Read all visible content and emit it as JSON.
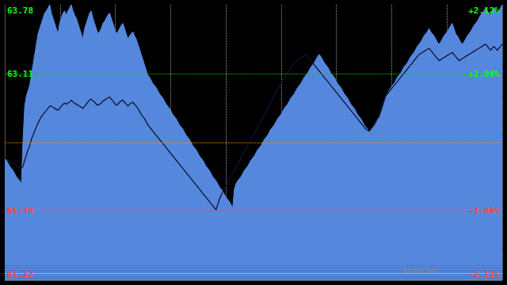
{
  "chart_data": {
    "type": "line",
    "ylim": [
      61.12,
      63.78
    ],
    "tick_labels": false,
    "grid": true,
    "series": [
      {
        "type": "area",
        "color": "#5588dd",
        "values": [
          62.3,
          62.28,
          62.25,
          62.22,
          62.2,
          62.18,
          62.15,
          62.12,
          62.1,
          62.08,
          62.05,
          62.48,
          62.8,
          62.9,
          62.95,
          63.0,
          63.1,
          63.2,
          63.3,
          63.4,
          63.5,
          63.55,
          63.6,
          63.65,
          63.7,
          63.72,
          63.75,
          63.78,
          63.7,
          63.65,
          63.6,
          63.55,
          63.5,
          63.6,
          63.65,
          63.7,
          63.72,
          63.68,
          63.72,
          63.75,
          63.78,
          63.72,
          63.68,
          63.65,
          63.6,
          63.55,
          63.5,
          63.45,
          63.55,
          63.6,
          63.65,
          63.7,
          63.72,
          63.65,
          63.6,
          63.55,
          63.5,
          63.52,
          63.55,
          63.6,
          63.62,
          63.65,
          63.68,
          63.7,
          63.65,
          63.6,
          63.55,
          63.5,
          63.52,
          63.55,
          63.58,
          63.6,
          63.55,
          63.5,
          63.45,
          63.48,
          63.5,
          63.52,
          63.48,
          63.45,
          63.4,
          63.35,
          63.3,
          63.25,
          63.2,
          63.15,
          63.1,
          63.08,
          63.05,
          63.02,
          63.0,
          62.98,
          62.95,
          62.92,
          62.9,
          62.88,
          62.85,
          62.82,
          62.8,
          62.78,
          62.75,
          62.72,
          62.7,
          62.68,
          62.65,
          62.62,
          62.6,
          62.58,
          62.55,
          62.52,
          62.5,
          62.48,
          62.45,
          62.42,
          62.4,
          62.38,
          62.35,
          62.32,
          62.3,
          62.28,
          62.25,
          62.22,
          62.2,
          62.18,
          62.15,
          62.12,
          62.1,
          62.08,
          62.05,
          62.02,
          62.0,
          61.98,
          61.95,
          61.92,
          61.9,
          61.88,
          61.85,
          61.82,
          62.0,
          62.05,
          62.08,
          62.1,
          62.12,
          62.15,
          62.18,
          62.2,
          62.22,
          62.25,
          62.28,
          62.3,
          62.32,
          62.35,
          62.38,
          62.4,
          62.42,
          62.45,
          62.48,
          62.5,
          62.52,
          62.55,
          62.58,
          62.6,
          62.62,
          62.65,
          62.68,
          62.7,
          62.72,
          62.75,
          62.78,
          62.8,
          62.82,
          62.85,
          62.88,
          62.9,
          62.92,
          62.95,
          62.98,
          63.0,
          63.02,
          63.05,
          63.08,
          63.1,
          63.12,
          63.15,
          63.18,
          63.2,
          63.22,
          63.25,
          63.28,
          63.3,
          63.28,
          63.25,
          63.22,
          63.2,
          63.18,
          63.15,
          63.12,
          63.1,
          63.08,
          63.05,
          63.02,
          63.0,
          62.98,
          62.95,
          62.92,
          62.9,
          62.88,
          62.85,
          62.82,
          62.8,
          62.78,
          62.75,
          62.72,
          62.7,
          62.68,
          62.65,
          62.62,
          62.6,
          62.58,
          62.55,
          62.58,
          62.6,
          62.62,
          62.65,
          62.68,
          62.7,
          62.75,
          62.8,
          62.85,
          62.9,
          62.92,
          62.95,
          62.98,
          63.0,
          63.02,
          63.05,
          63.08,
          63.1,
          63.12,
          63.15,
          63.18,
          63.2,
          63.22,
          63.25,
          63.28,
          63.3,
          63.32,
          63.35,
          63.38,
          63.4,
          63.42,
          63.45,
          63.48,
          63.5,
          63.52,
          63.55,
          63.52,
          63.5,
          63.48,
          63.45,
          63.42,
          63.4,
          63.42,
          63.45,
          63.48,
          63.5,
          63.52,
          63.55,
          63.58,
          63.6,
          63.55,
          63.5,
          63.48,
          63.45,
          63.42,
          63.4,
          63.42,
          63.45,
          63.48,
          63.5,
          63.52,
          63.55,
          63.58,
          63.6,
          63.62,
          63.65,
          63.68,
          63.7,
          63.72,
          63.75,
          63.72,
          63.7,
          63.68,
          63.72,
          63.75,
          63.72,
          63.7,
          63.72,
          63.75,
          63.78
        ]
      },
      {
        "type": "line",
        "color": "#111133",
        "values": [
          62.3,
          62.29,
          62.28,
          62.27,
          62.26,
          62.25,
          62.24,
          62.23,
          62.22,
          62.21,
          62.2,
          62.22,
          62.28,
          62.33,
          62.38,
          62.42,
          62.48,
          62.52,
          62.56,
          62.6,
          62.64,
          62.67,
          62.7,
          62.72,
          62.74,
          62.76,
          62.78,
          62.8,
          62.8,
          62.79,
          62.78,
          62.77,
          62.76,
          62.78,
          62.8,
          62.82,
          62.83,
          62.82,
          62.83,
          62.84,
          62.86,
          62.84,
          62.83,
          62.82,
          62.81,
          62.8,
          62.79,
          62.78,
          62.8,
          62.82,
          62.84,
          62.86,
          62.87,
          62.85,
          62.84,
          62.82,
          62.81,
          62.82,
          62.83,
          62.85,
          62.86,
          62.87,
          62.88,
          62.89,
          62.87,
          62.85,
          62.83,
          62.81,
          62.82,
          62.84,
          62.85,
          62.86,
          62.84,
          62.82,
          62.8,
          62.82,
          62.83,
          62.84,
          62.82,
          62.8,
          62.78,
          62.75,
          62.72,
          62.7,
          62.68,
          62.65,
          62.62,
          62.6,
          62.58,
          62.56,
          62.54,
          62.52,
          62.5,
          62.48,
          62.46,
          62.44,
          62.42,
          62.4,
          62.38,
          62.36,
          62.34,
          62.32,
          62.3,
          62.28,
          62.26,
          62.24,
          62.22,
          62.2,
          62.18,
          62.16,
          62.14,
          62.12,
          62.1,
          62.08,
          62.06,
          62.04,
          62.02,
          62.0,
          61.98,
          61.96,
          61.94,
          61.92,
          61.9,
          61.88,
          61.86,
          61.84,
          61.82,
          61.8,
          61.85,
          61.9,
          61.94,
          61.97,
          62.0,
          62.03,
          62.06,
          62.09,
          62.12,
          62.15,
          62.18,
          62.21,
          62.24,
          62.27,
          62.3,
          62.33,
          62.36,
          62.39,
          62.42,
          62.45,
          62.48,
          62.51,
          62.54,
          62.57,
          62.6,
          62.63,
          62.66,
          62.69,
          62.72,
          62.75,
          62.78,
          62.81,
          62.84,
          62.87,
          62.9,
          62.93,
          62.96,
          62.99,
          63.02,
          63.05,
          63.08,
          63.11,
          63.13,
          63.15,
          63.17,
          63.19,
          63.21,
          63.23,
          63.25,
          63.26,
          63.27,
          63.28,
          63.29,
          63.3,
          63.28,
          63.26,
          63.24,
          63.22,
          63.2,
          63.18,
          63.16,
          63.14,
          63.12,
          63.1,
          63.08,
          63.06,
          63.04,
          63.02,
          63.0,
          62.98,
          62.96,
          62.94,
          62.92,
          62.9,
          62.88,
          62.86,
          62.84,
          62.82,
          62.8,
          62.78,
          62.76,
          62.74,
          62.72,
          62.7,
          62.68,
          62.66,
          62.64,
          62.62,
          62.6,
          62.58,
          62.57,
          62.56,
          62.58,
          62.6,
          62.62,
          62.65,
          62.68,
          62.7,
          62.75,
          62.8,
          62.85,
          62.9,
          62.92,
          62.94,
          62.96,
          62.98,
          63.0,
          63.02,
          63.04,
          63.06,
          63.08,
          63.1,
          63.12,
          63.14,
          63.16,
          63.18,
          63.2,
          63.22,
          63.24,
          63.26,
          63.28,
          63.3,
          63.31,
          63.32,
          63.33,
          63.34,
          63.35,
          63.36,
          63.34,
          63.32,
          63.3,
          63.28,
          63.26,
          63.24,
          63.25,
          63.26,
          63.27,
          63.28,
          63.29,
          63.3,
          63.31,
          63.32,
          63.3,
          63.28,
          63.26,
          63.24,
          63.25,
          63.26,
          63.27,
          63.28,
          63.29,
          63.3,
          63.31,
          63.32,
          63.33,
          63.34,
          63.35,
          63.36,
          63.37,
          63.38,
          63.39,
          63.4,
          63.38,
          63.36,
          63.34,
          63.36,
          63.38,
          63.36,
          63.34,
          63.36,
          63.38,
          63.4
        ]
      }
    ],
    "hlines": [
      {
        "y": 63.11,
        "color": "#00cc00",
        "line_style": "dotted"
      },
      {
        "y": 62.45,
        "color": "#ff8800",
        "line_style": "dotted"
      },
      {
        "y": 61.79,
        "color": "#ff4444",
        "line_style": "dotted"
      },
      {
        "y": 61.185,
        "color": "#00ffff",
        "line_style": "solid"
      },
      {
        "y": 61.14,
        "color": "#4477cc",
        "line_style": "solid"
      },
      {
        "y": 61.16,
        "color": "#4477cc",
        "line_style": "solid"
      },
      {
        "y": 61.18,
        "color": "#4477cc",
        "line_style": "solid"
      },
      {
        "y": 61.2,
        "color": "#4477cc",
        "line_style": "solid"
      },
      {
        "y": 61.22,
        "color": "#4477cc",
        "line_style": "solid"
      },
      {
        "y": 61.24,
        "color": "#4477cc",
        "line_style": "solid"
      },
      {
        "y": 61.26,
        "color": "#4477cc",
        "line_style": "solid"
      }
    ],
    "annotations": [
      {
        "text": "63.78",
        "y": 63.78,
        "color": "#00ff00",
        "align": "left"
      },
      {
        "text": "63.11",
        "y": 63.11,
        "color": "#00ff00",
        "align": "left"
      },
      {
        "text": "61.79",
        "y": 61.79,
        "color": "#ff4444",
        "align": "left"
      },
      {
        "text": "61.12",
        "y": 61.12,
        "color": "#ff4444",
        "align": "left"
      },
      {
        "text": "+2.12%",
        "y": 63.78,
        "color": "#00ff00",
        "align": "right"
      },
      {
        "text": "+1.08%",
        "y": 63.11,
        "color": "#00ff00",
        "align": "right"
      },
      {
        "text": "-1.08%",
        "y": 61.79,
        "color": "#ff4444",
        "align": "right"
      },
      {
        "text": "-2.12%",
        "y": 61.12,
        "color": "#ff4444",
        "align": "right"
      },
      {
        "text": "sina.com",
        "color": "#888888"
      }
    ]
  }
}
